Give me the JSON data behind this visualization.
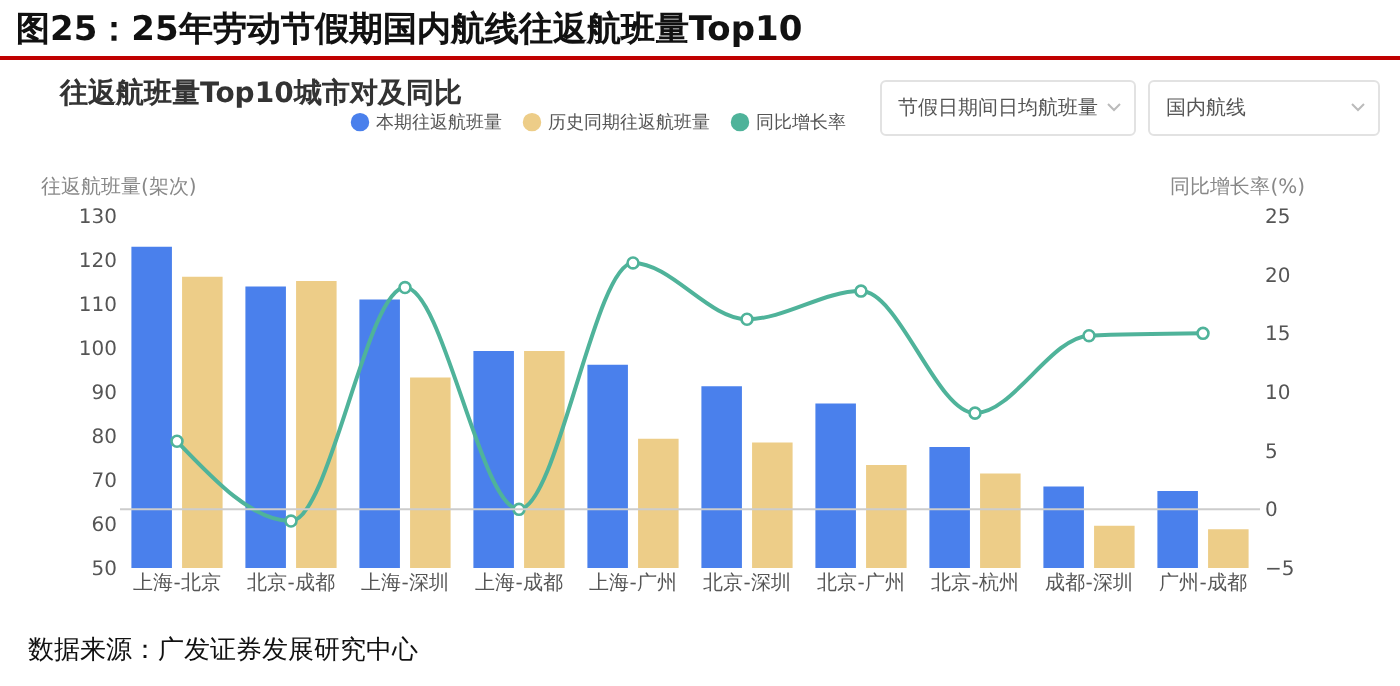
{
  "chart_data": {
    "type": "bar",
    "title": "图25：25年劳动节假期国内航线往返航班量Top10",
    "subtitle": "往返航班量Top10城市对及同比",
    "ylabel": "往返航班量(架次)",
    "y2label": "同比增长率(%)",
    "categories": [
      "上海-北京",
      "北京-成都",
      "上海-深圳",
      "上海-成都",
      "上海-广州",
      "北京-深圳",
      "北京-广州",
      "北京-杭州",
      "成都-深圳",
      "广州-成都"
    ],
    "series": [
      {
        "name": "本期往返航班量",
        "color": "#4a80ec",
        "values": [
          123,
          114,
          111,
          99.3,
          96.2,
          91.3,
          87.4,
          77.5,
          68.5,
          67.5
        ]
      },
      {
        "name": "历史同期往返航班量",
        "color": "#edcd88",
        "values": [
          116.2,
          115.2,
          93.3,
          99.3,
          79.4,
          78.5,
          73.4,
          71.5,
          59.6,
          58.8
        ]
      },
      {
        "name": "同比增长率",
        "type": "line",
        "axis": "y2",
        "color": "#4fb39a",
        "values": [
          5.8,
          -1,
          18.9,
          0,
          21,
          16.2,
          18.6,
          8.2,
          14.8,
          15
        ]
      }
    ],
    "ylim": [
      50,
      130
    ],
    "yticks": [
      50,
      60,
      70,
      80,
      90,
      100,
      110,
      120,
      130
    ],
    "y2lim": [
      -5,
      25
    ],
    "y2ticks": [
      -5,
      0,
      5,
      10,
      15,
      20,
      25
    ],
    "ref_lines": [
      {
        "axis": "y2",
        "value": 0,
        "color": "#cccccc"
      }
    ],
    "marker": "circle",
    "legend": "top",
    "grid": false,
    "annotations": [
      "节假日期间日均航班量",
      "国内航线",
      "数据来源：广发证券发展研究中心"
    ]
  }
}
